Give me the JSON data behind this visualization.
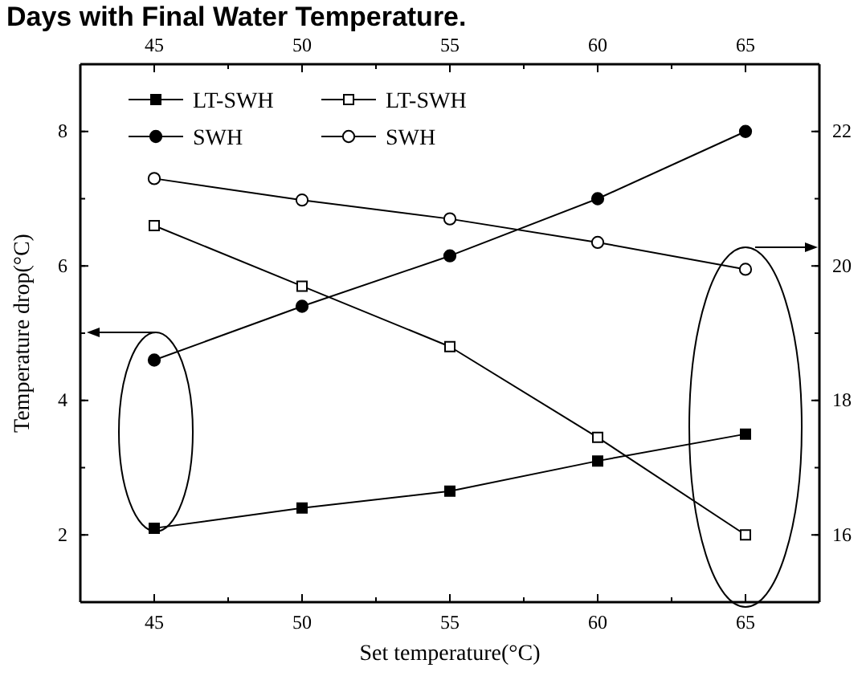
{
  "chart_data": {
    "type": "line",
    "title": "Days with Final Water Temperature.",
    "xlabel": "Set temperature(°C)",
    "ylabel": "Temperature drop(°C)",
    "x": [
      45,
      50,
      55,
      60,
      65
    ],
    "xlim": [
      42.5,
      67.5
    ],
    "xticks": [
      45,
      50,
      55,
      60,
      65
    ],
    "x2lim": [
      42.5,
      67.5
    ],
    "x2ticks": [
      45,
      50,
      55,
      60,
      65
    ],
    "ylim": [
      1,
      9
    ],
    "yticks": [
      2,
      4,
      6,
      8
    ],
    "y2lim": [
      15,
      23
    ],
    "y2ticks": [
      16,
      18,
      20,
      22
    ],
    "series": [
      {
        "name": "LT-SWH",
        "color": "#000000",
        "marker": "square",
        "values": [
          2.1,
          2.4,
          2.65,
          3.1,
          3.5
        ]
      },
      {
        "name": "LT-SWH",
        "color": "#000000",
        "marker": "square",
        "axis": "y2",
        "values": [
          20.6,
          19.7,
          18.8,
          17.45,
          16.0
        ]
      },
      {
        "name": "SWH",
        "color": "#000000",
        "marker": "circle",
        "values": [
          4.6,
          5.4,
          6.15,
          7.0,
          8.0
        ]
      },
      {
        "name": "SWH",
        "color": "#000000",
        "marker": "circle",
        "axis": "y2",
        "values": [
          21.3,
          20.98,
          20.7,
          20.35,
          19.95
        ]
      }
    ],
    "legend": "top left",
    "grid": false,
    "line_style": "solid"
  }
}
